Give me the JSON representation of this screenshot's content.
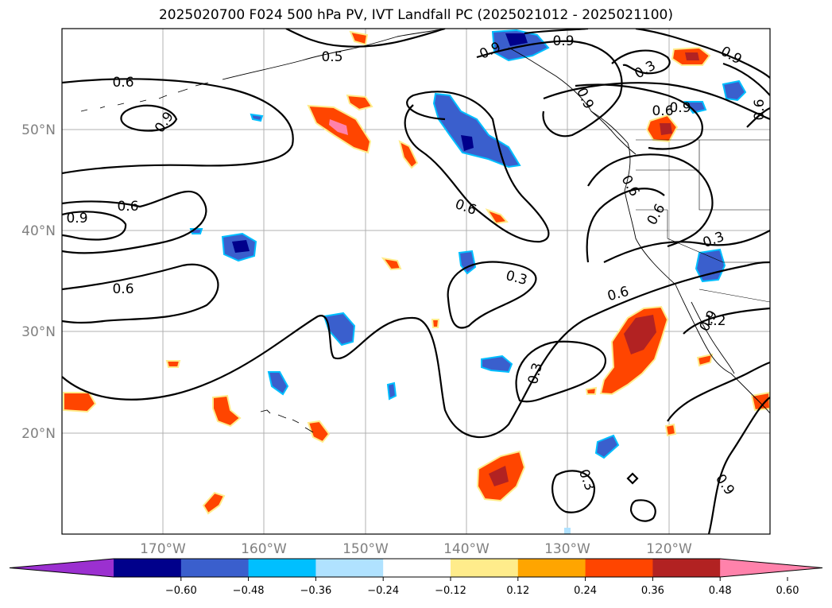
{
  "title": "2025020700 F024 500 hPa PV, IVT Landfall PC (2025021012 - 2025021100)",
  "lat_labels": [
    "50°N",
    "40°N",
    "30°N",
    "20°N"
  ],
  "lon_labels": [
    "170°W",
    "160°W",
    "150°W",
    "140°W",
    "130°W",
    "120°W"
  ],
  "map_extent": {
    "lon": [
      -180,
      -110
    ],
    "lat": [
      10,
      60
    ]
  },
  "contour_labels": [
    "0.6",
    "0.9",
    "0.9",
    "0.6",
    "0.6",
    "0.9",
    "0.9",
    "0.9",
    "0.6",
    "0.9",
    "0.6",
    "0.3",
    "0.6",
    "0.3",
    "0.3",
    "0.3",
    "0.6",
    "0.9",
    "0.6",
    "0.9",
    "0.6",
    "0.9",
    "0.3",
    "0.3",
    "0.3",
    "1.2",
    "0.5"
  ],
  "colorbar": {
    "ticks": [
      "−0.60",
      "−0.48",
      "−0.36",
      "−0.24",
      "−0.12",
      "0.12",
      "0.24",
      "0.36",
      "0.48",
      "0.60"
    ],
    "colors": [
      "#9b30d0",
      "#00008b",
      "#3a5fcd",
      "#00bfff",
      "#b0e2ff",
      "#ffffff",
      "#ffec8b",
      "#ffa500",
      "#ff4500",
      "#b22222",
      "#ff82ab"
    ]
  }
}
